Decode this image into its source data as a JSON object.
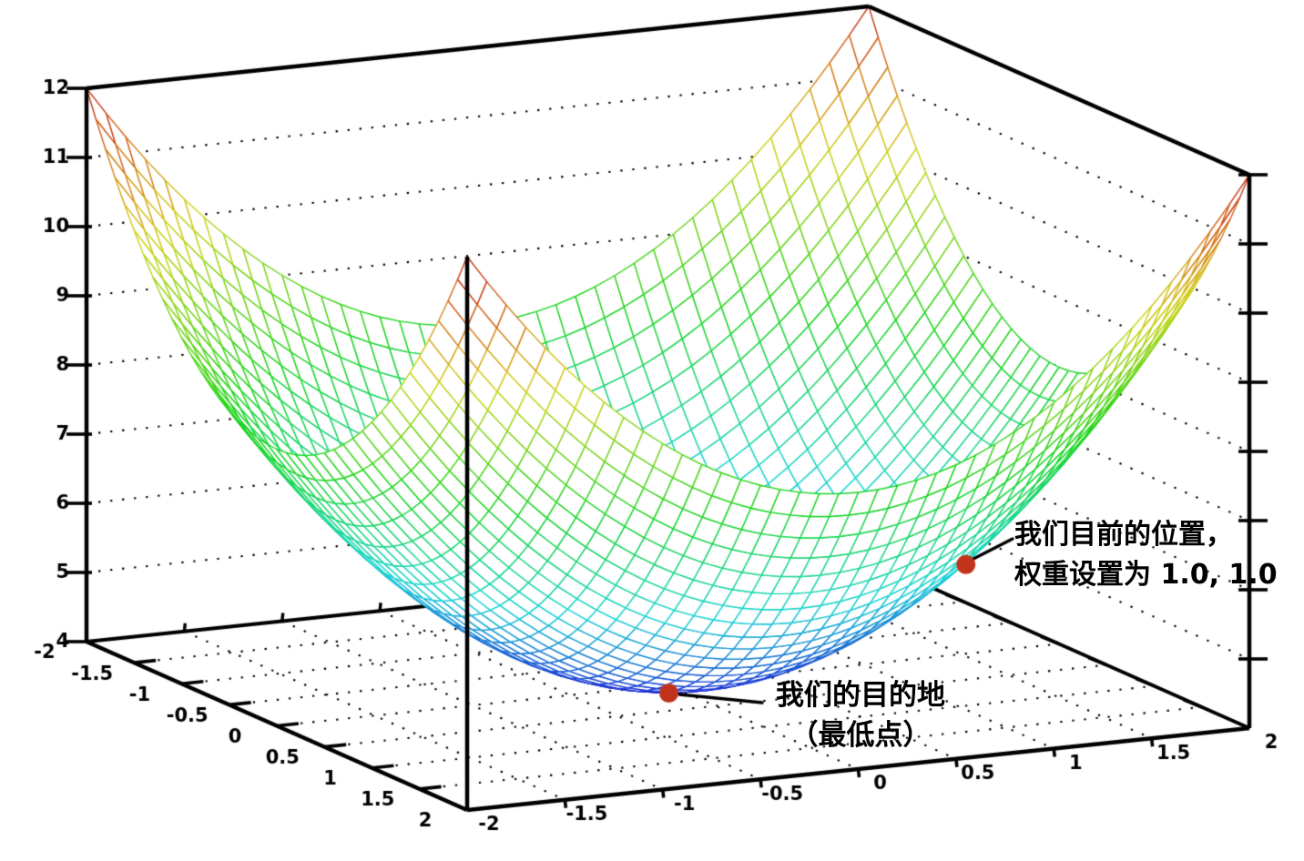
{
  "figure": {
    "background": "#ffffff",
    "description": "3D wireframe bowl-shaped loss surface with two annotated points"
  },
  "chart_data": {
    "type": "surface",
    "surface": {
      "expression": "z = x^2 + y^2 + 4",
      "x_min": -2,
      "x_max": 2,
      "y_min": -2,
      "y_max": 2,
      "z_min": 4,
      "z_max": 12,
      "grid_divisions": 40,
      "colormap": "rainbow-by-height",
      "color_low": "#1b1bd6",
      "color_high": "#bf1313"
    },
    "x_axis": {
      "ticks": [
        -2,
        -1.5,
        -1,
        -0.5,
        0,
        0.5,
        1,
        1.5,
        2
      ],
      "tick_labels": [
        "-2",
        "-1.5",
        "-1",
        "-0.5",
        "0",
        "0.5",
        "1",
        "1.5",
        "2"
      ]
    },
    "y_axis": {
      "ticks": [
        -2,
        -1.5,
        -1,
        -0.5,
        0,
        0.5,
        1,
        1.5,
        2
      ],
      "tick_labels": [
        "-2",
        "-1.5",
        "-1",
        "-0.5",
        "0",
        "0.5",
        "1",
        "1.5",
        "2"
      ]
    },
    "z_axis": {
      "ticks": [
        4,
        5,
        6,
        7,
        8,
        9,
        10,
        11,
        12
      ],
      "tick_labels": [
        "4",
        "5",
        "6",
        "7",
        "8",
        "9",
        "10",
        "11",
        "12"
      ]
    },
    "grid": {
      "shown": true,
      "style": "dotted",
      "color": "#000000"
    },
    "annotations": [
      {
        "id": "current-position",
        "lines": [
          "我们目前的位置，",
          "权重设置为 1.0, 1.0"
        ],
        "point": {
          "x": 1.0,
          "y": 1.0,
          "z": 6.0
        },
        "marker": "dot",
        "marker_color": "#c2331b"
      },
      {
        "id": "destination",
        "lines": [
          "我们的目的地",
          "（最低点）"
        ],
        "point": {
          "x": 0,
          "y": 0,
          "z": 4
        },
        "marker": "dot",
        "marker_color": "#c2331b"
      }
    ]
  }
}
